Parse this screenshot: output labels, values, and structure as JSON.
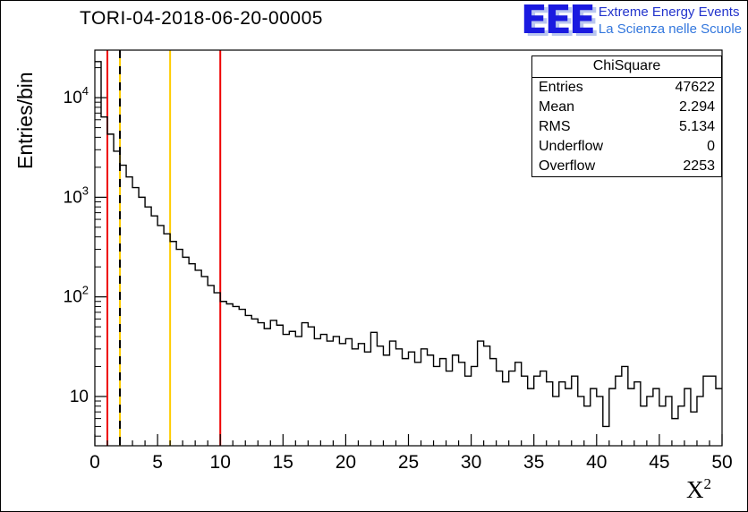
{
  "title": "TORI-04-2018-06-20-00005",
  "logo": {
    "mark": "EEE",
    "line1": "Extreme Energy Events",
    "line2": "La Scienza nelle Scuole"
  },
  "stats": {
    "title": "ChiSquare",
    "rows": [
      {
        "label": "Entries",
        "value": "47622"
      },
      {
        "label": "Mean",
        "value": "2.294"
      },
      {
        "label": "RMS",
        "value": "5.134"
      },
      {
        "label": "Underflow",
        "value": "0"
      },
      {
        "label": "Overflow",
        "value": "2253"
      }
    ]
  },
  "axes": {
    "y_title": "Entries/bin",
    "x_title_base": "X",
    "x_title_exp": "2"
  },
  "chart_data": {
    "type": "histogram",
    "title": "TORI-04-2018-06-20-00005",
    "xlabel": "X^2",
    "ylabel": "Entries/bin",
    "xlim": [
      0,
      50
    ],
    "ylim": [
      3.2,
      30000
    ],
    "ylog": true,
    "x_major_step": 5,
    "x_minor_step": 1,
    "bin_width": 0.5,
    "line_color": "#000000",
    "values": [
      23000,
      6400,
      4300,
      2900,
      2100,
      1600,
      1250,
      1000,
      800,
      650,
      520,
      430,
      360,
      300,
      250,
      215,
      185,
      160,
      130,
      110,
      90,
      85,
      80,
      75,
      65,
      60,
      55,
      48,
      58,
      52,
      42,
      45,
      40,
      55,
      50,
      38,
      42,
      36,
      40,
      34,
      38,
      30,
      34,
      28,
      44,
      32,
      26,
      36,
      30,
      24,
      28,
      22,
      30,
      26,
      20,
      24,
      18,
      26,
      22,
      16,
      20,
      36,
      32,
      24,
      18,
      14,
      18,
      22,
      16,
      12,
      16,
      18,
      14,
      10,
      14,
      12,
      16,
      10,
      8,
      12,
      10,
      5,
      12,
      16,
      20,
      12,
      14,
      8,
      10,
      12,
      8,
      10,
      6,
      8,
      12,
      7,
      10,
      16,
      16,
      12
    ],
    "vlines": [
      {
        "x": 1,
        "color": "#ee0000",
        "style": "solid"
      },
      {
        "x": 2,
        "color": "#000000",
        "style": "dashed",
        "under_color": "#ffcc00"
      },
      {
        "x": 6,
        "color": "#ffcc00",
        "style": "solid"
      },
      {
        "x": 10,
        "color": "#ee0000",
        "style": "solid"
      }
    ],
    "stats": {
      "entries": 47622,
      "mean": 2.294,
      "rms": 5.134,
      "underflow": 0,
      "overflow": 2253
    }
  }
}
